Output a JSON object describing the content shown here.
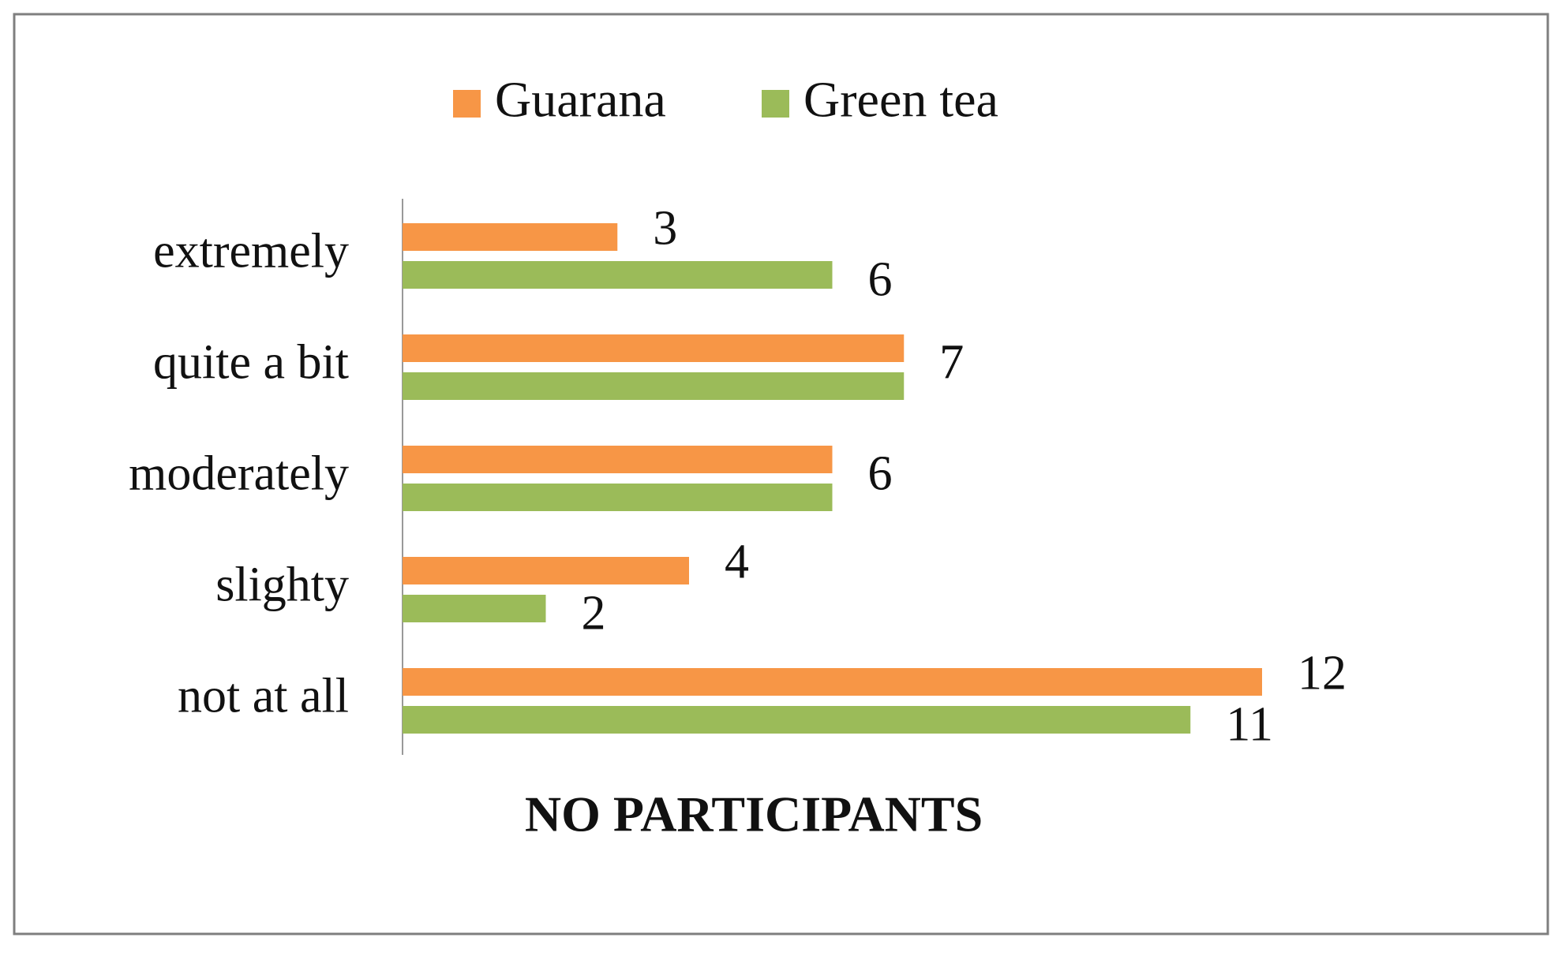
{
  "chart_data": {
    "type": "bar",
    "orientation": "horizontal",
    "x_label": "NO PARTICIPANTS",
    "categories": [
      "extremely",
      "quite a bit",
      "moderately",
      "slighty",
      "not at all"
    ],
    "series": [
      {
        "name": "Guarana",
        "color": "#f79646",
        "values": [
          3,
          7,
          6,
          4,
          12
        ]
      },
      {
        "name": "Green tea",
        "color": "#9bbb59",
        "values": [
          6,
          7,
          6,
          2,
          11
        ]
      }
    ],
    "xlim": [
      0,
      12
    ],
    "legend": "top",
    "grid": false
  }
}
